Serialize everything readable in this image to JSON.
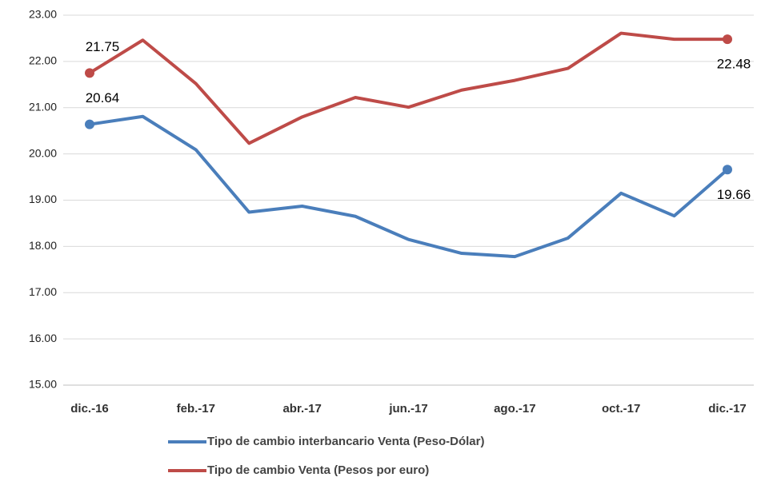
{
  "chart_data": {
    "type": "line",
    "categories": [
      "dic.-16",
      null,
      "feb.-17",
      null,
      "abr.-17",
      null,
      "jun.-17",
      null,
      "ago.-17",
      null,
      "oct.-17",
      null,
      "dic.-17"
    ],
    "series": [
      {
        "name": "Tipo de cambio interbancario Venta (Peso-Dólar)",
        "color": "#4a7ebb",
        "values": [
          20.64,
          20.81,
          20.09,
          18.74,
          18.87,
          18.65,
          18.15,
          17.85,
          17.78,
          18.18,
          19.15,
          18.66,
          19.66
        ],
        "value_labels": [
          "20.64",
          null,
          null,
          null,
          null,
          null,
          null,
          null,
          null,
          null,
          null,
          null,
          "19.66"
        ]
      },
      {
        "name": "Tipo de cambio Venta (Pesos por euro)",
        "color": "#be4b48",
        "values": [
          21.75,
          22.46,
          21.52,
          20.23,
          20.8,
          21.22,
          21.01,
          21.38,
          21.59,
          21.85,
          22.61,
          22.48,
          22.48
        ],
        "value_labels": [
          "21.75",
          null,
          null,
          null,
          null,
          null,
          null,
          null,
          null,
          null,
          null,
          null,
          "22.48"
        ]
      }
    ],
    "ylim": [
      15,
      23
    ],
    "yticks": [
      {
        "value": 15,
        "label": "15.00"
      },
      {
        "value": 16,
        "label": "16.00"
      },
      {
        "value": 17,
        "label": "17.00"
      },
      {
        "value": 18,
        "label": "18.00"
      },
      {
        "value": 19,
        "label": "19.00"
      },
      {
        "value": 20,
        "label": "20.00"
      },
      {
        "value": 21,
        "label": "21.00"
      },
      {
        "value": 22,
        "label": "22.00"
      },
      {
        "value": 23,
        "label": "23.00"
      }
    ],
    "grid": true,
    "legend": "bottom"
  }
}
